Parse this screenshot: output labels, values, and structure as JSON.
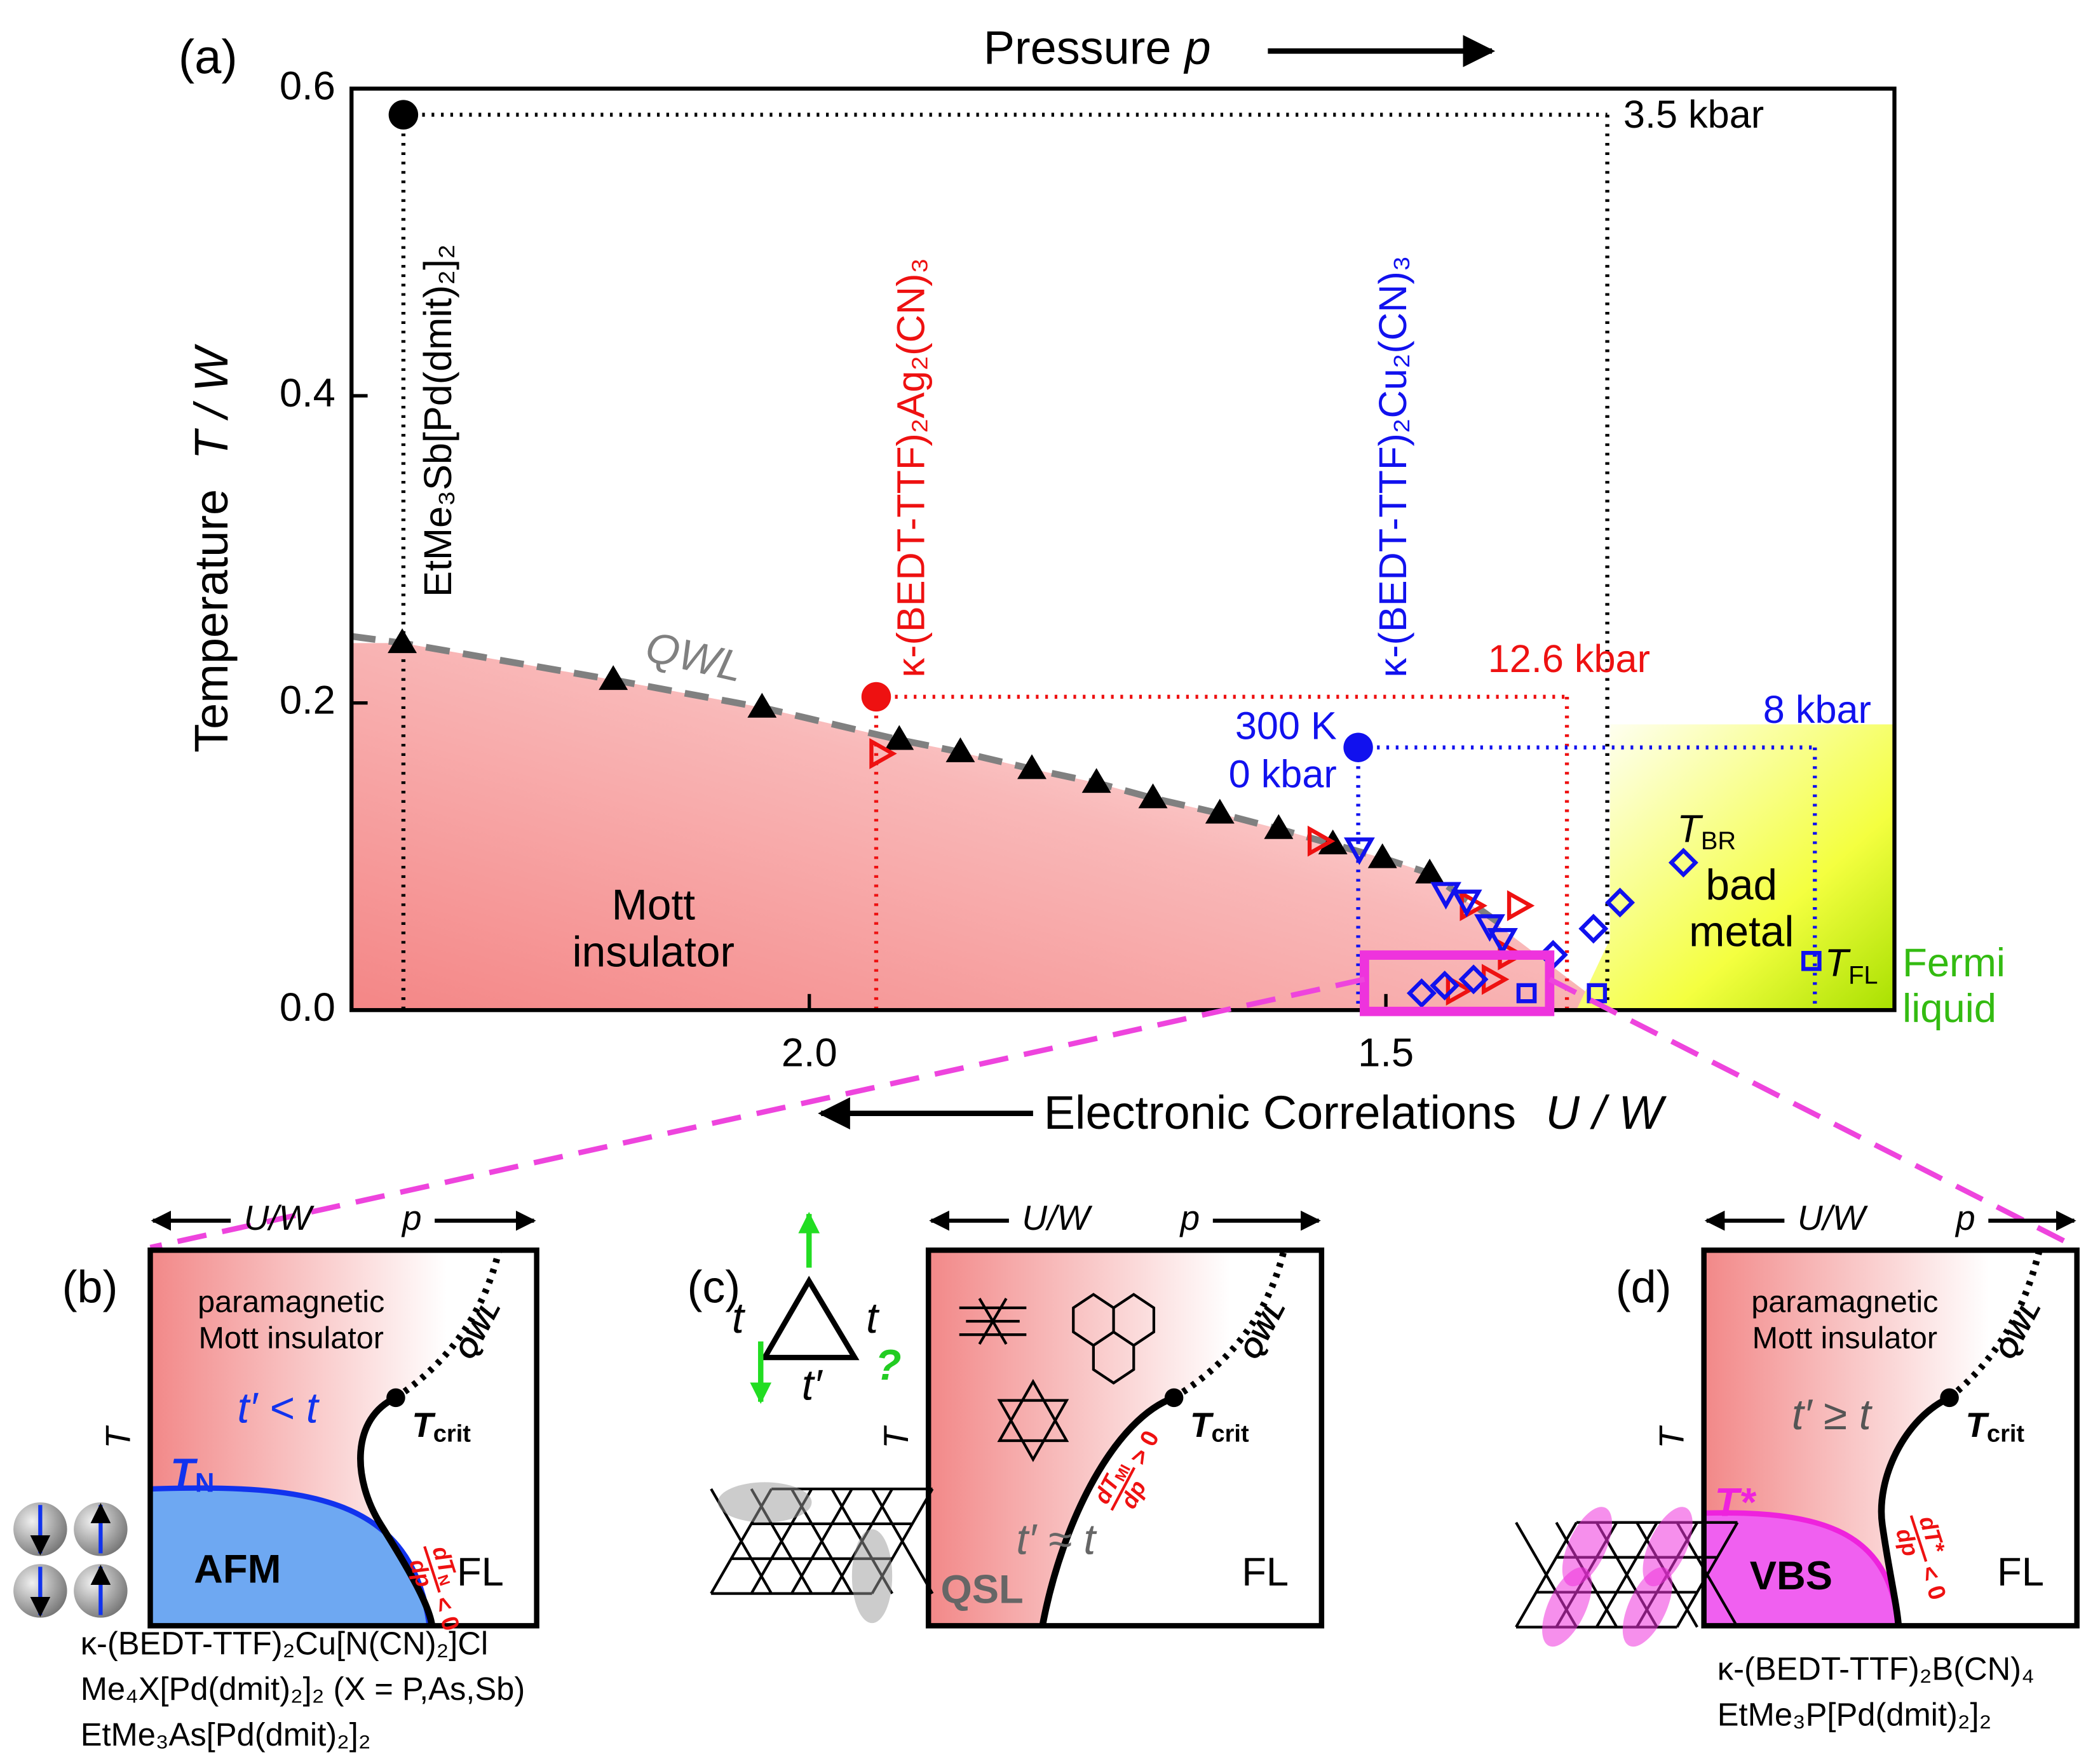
{
  "chart_data": {
    "type": "scatter",
    "panel_label": "(a)",
    "top_label": {
      "text": "Pressure",
      "var": "p"
    },
    "xlabel": {
      "text": "Electronic Correlations",
      "var": "U / W"
    },
    "ylabel": {
      "text": "Temperature",
      "var": "T / W"
    },
    "xlim": [
      2.397,
      1.059
    ],
    "ylim": [
      0,
      0.6
    ],
    "xticks": [
      {
        "value": 2,
        "label": "2.0"
      },
      1.5
    ],
    "yticks": [
      {
        "value": 0,
        "label": "0.0"
      },
      0.2,
      0.4,
      0.6
    ],
    "materials": [
      {
        "label": "EtMe₃Sb[Pd(dmit)₂]₂",
        "color": "#000000",
        "x": 2.352,
        "y": 0.583,
        "x_end": 1.308,
        "pressure": "3.5 kbar"
      },
      {
        "label": "κ-(BEDT-TTF)₂Ag₂(CN)₃",
        "color": "#ee1111",
        "x": 1.942,
        "y": 0.204,
        "x_end": 1.343,
        "pressure": "12.6 kbar"
      },
      {
        "label": "κ-(BEDT-TTF)₂Cu₂(CN)₃",
        "color": "#1111ee",
        "x": 1.524,
        "y": 0.171,
        "x_end": 1.128,
        "pressure": "8 kbar",
        "start_label": [
          "300 K",
          "0 kbar"
        ]
      }
    ],
    "series": [
      {
        "name": "QWL",
        "color": "#000000",
        "line_color": "#808080",
        "marker": "triangle-up",
        "x": [
          2.353,
          2.17,
          2.041,
          1.922,
          1.869,
          1.807,
          1.751,
          1.702,
          1.644,
          1.593,
          1.546,
          1.503,
          1.462
        ],
        "y": [
          0.239,
          0.215,
          0.197,
          0.176,
          0.168,
          0.157,
          0.148,
          0.138,
          0.128,
          0.118,
          0.108,
          0.099,
          0.089
        ]
      },
      {
        "color": "#ee1111",
        "marker": "triangle-right",
        "x": [
          1.938,
          1.558,
          1.426,
          1.385,
          1.393,
          1.438,
          1.407
        ],
        "y": [
          0.167,
          0.11,
          0.068,
          0.068,
          0.036,
          0.013,
          0.02
        ]
      },
      {
        "color": "#1111ee",
        "marker": "triangle-down",
        "x": [
          1.523,
          1.448,
          1.43,
          1.41,
          1.399
        ],
        "y": [
          0.105,
          0.076,
          0.071,
          0.055,
          0.046
        ]
      },
      {
        "name": "T",
        "name_sub": "BR",
        "color": "#1111ee",
        "marker": "diamond",
        "x": [
          1.469,
          1.449,
          1.424,
          1.355,
          1.32,
          1.297,
          1.242
        ],
        "y": [
          0.011,
          0.016,
          0.02,
          0.036,
          0.053,
          0.07,
          0.096
        ]
      },
      {
        "name": "T",
        "name_sub": "FL",
        "color": "#1111ee",
        "marker": "square",
        "x": [
          1.378,
          1.317,
          1.131
        ],
        "y": [
          0.011,
          0.011,
          0.032
        ]
      }
    ],
    "mott_label": [
      "Mott",
      "insulator"
    ],
    "metal_label": [
      "bad",
      "metal"
    ],
    "fermi_label": [
      "Fermi",
      "liquid"
    ]
  },
  "insets": [
    {
      "label": "(b)",
      "left": "U/W",
      "right": "p",
      "t_axis": "T",
      "region": [
        "paramagnetic",
        "Mott insulator"
      ],
      "hopping": "t′ < t",
      "order": {
        "main": "T",
        "sub": "N"
      },
      "crit": {
        "main": "T",
        "sub": "crit"
      },
      "qwl": "QWL",
      "phase": "AFM",
      "fl": "FL",
      "slope": {
        "num": "dT",
        "sub": "N",
        "den": "dp",
        "rel": "< 0"
      },
      "compounds": [
        "κ-(BEDT-TTF)₂Cu[N(CN)₂]Cl",
        "Me₄X[Pd(dmit)₂]₂ (X = P,As,Sb)",
        "EtMe₃As[Pd(dmit)₂]₂"
      ]
    },
    {
      "label": "(c)",
      "left": "U/W",
      "right": "p",
      "t_axis": "T",
      "hopping": "t′ ≈ t",
      "crit": {
        "main": "T",
        "sub": "crit"
      },
      "qwl": "QWL",
      "phase": "QSL",
      "fl": "FL",
      "slope": {
        "num": "dT",
        "sub": "MI",
        "den": "dp",
        "rel": "> 0"
      },
      "triangle": [
        "t",
        "t",
        "t′",
        "?"
      ]
    },
    {
      "label": "(d)",
      "left": "U/W",
      "right": "p",
      "t_axis": "T",
      "region": [
        "paramagnetic",
        "Mott insulator"
      ],
      "hopping": "t′ ≥ t",
      "order": {
        "main": "T*"
      },
      "crit": {
        "main": "T",
        "sub": "crit"
      },
      "qwl": "QWL",
      "phase": "VBS",
      "fl": "FL",
      "slope": {
        "num": "dT*",
        "den": "dp",
        "rel": "< 0"
      },
      "compounds": [
        "κ-(BEDT-TTF)₂B(CN)₄",
        "EtMe₃P[Pd(dmit)₂]₂"
      ]
    }
  ]
}
